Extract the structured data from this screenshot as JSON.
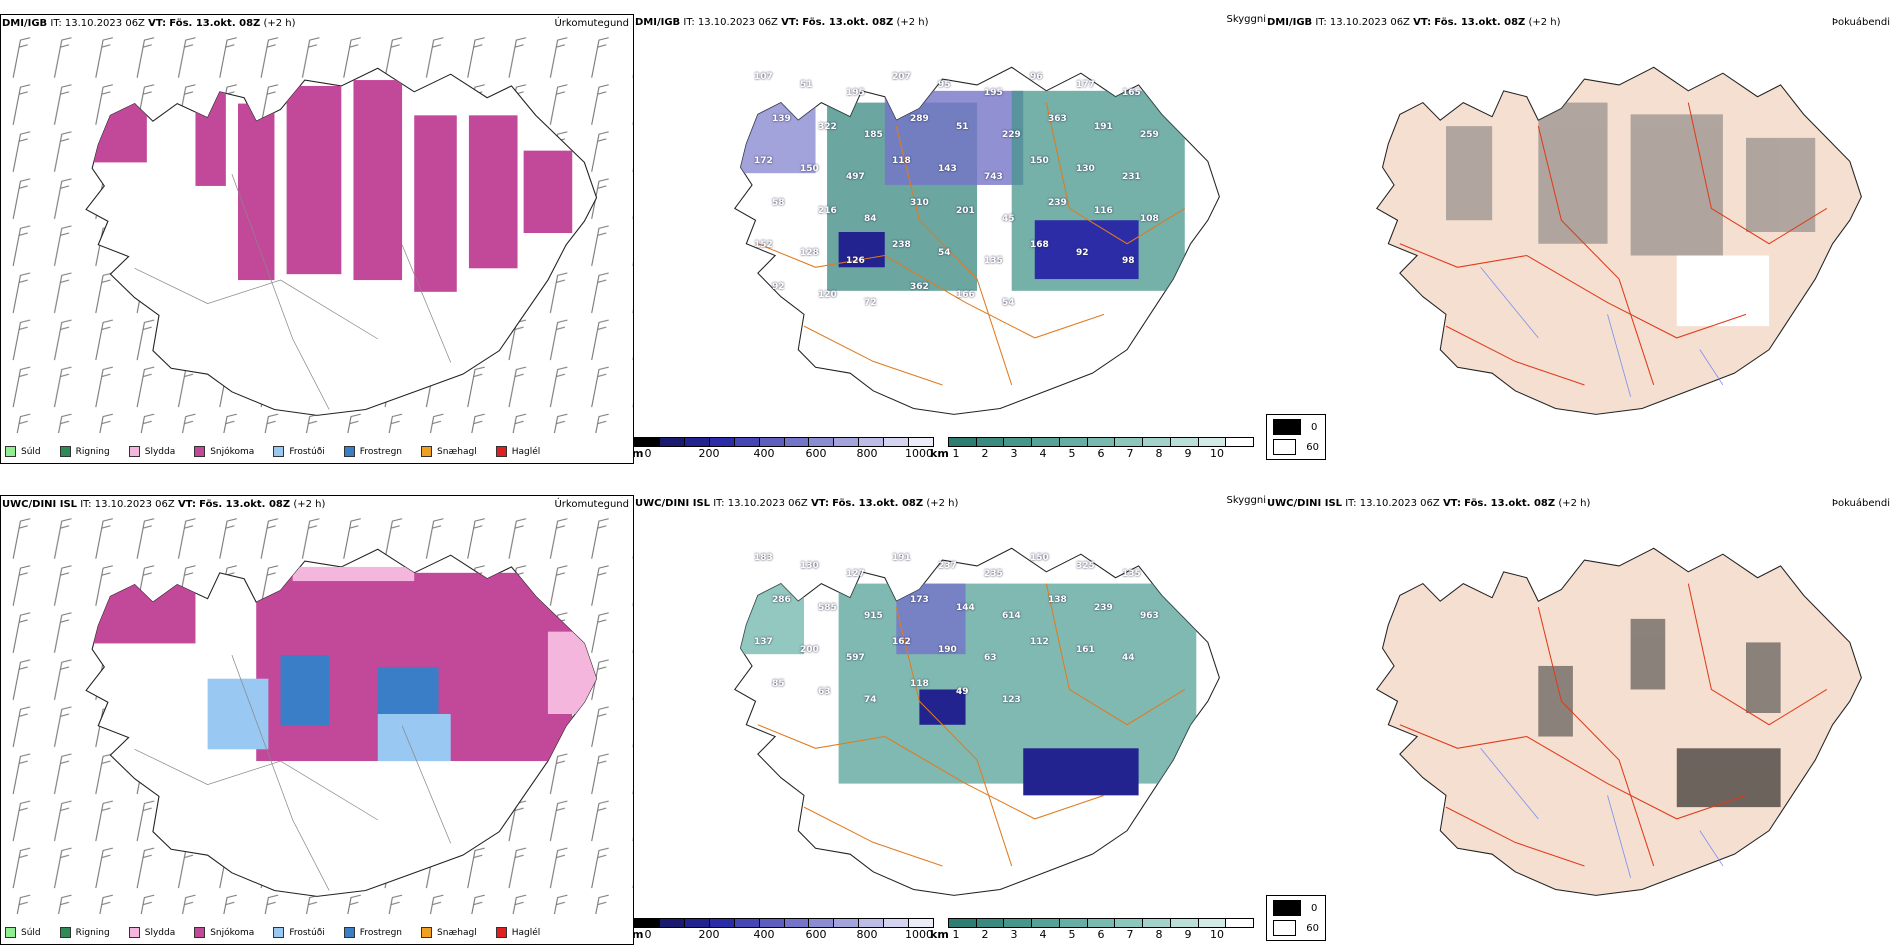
{
  "rows": [
    {
      "model": "DMI/IGB",
      "it_label": "IT:",
      "it_value": "13.10.2023 06Z",
      "vt_label": "VT:",
      "vt_value": "Fös. 13.okt. 08Z",
      "lead": "(+2 h)"
    },
    {
      "model": "UWC/DINI ISL",
      "it_label": "IT:",
      "it_value": "13.10.2023 06Z",
      "vt_label": "VT:",
      "vt_value": "Fös. 13.okt. 08Z",
      "lead": "(+2 h)"
    }
  ],
  "panel_titles": {
    "precip": "Úrkomutegund",
    "visibility": "Skyggni",
    "fog": "Þokuábendi"
  },
  "precip_legend": [
    {
      "label": "Súld",
      "color": "#90ee90"
    },
    {
      "label": "Rigning",
      "color": "#2e8b57"
    },
    {
      "label": "Slydda",
      "color": "#f4b6dc"
    },
    {
      "label": "Snjókoma",
      "color": "#c2489a"
    },
    {
      "label": "Frostúði",
      "color": "#99c8f2"
    },
    {
      "label": "Frostregn",
      "color": "#3a7ec8"
    },
    {
      "label": "Snæhagl",
      "color": "#f0a020"
    },
    {
      "label": "Haglél",
      "color": "#e02020"
    }
  ],
  "cloudbase_bar": {
    "unit": "m",
    "ticks": [
      "0",
      "200",
      "400",
      "600",
      "800",
      "1000"
    ],
    "colors": [
      "#000000",
      "#1a1a6e",
      "#232390",
      "#2c2ca6",
      "#4646b4",
      "#5e5ebe",
      "#7474c8",
      "#8c8cd2",
      "#a4a4dc",
      "#bcbce6",
      "#d4d4f0",
      "#ececf8"
    ]
  },
  "visibility_bar": {
    "unit": "km",
    "ticks": [
      "1",
      "2",
      "3",
      "4",
      "5",
      "6",
      "7",
      "8",
      "9",
      "10"
    ],
    "colors": [
      "#2e7d73",
      "#3a8a80",
      "#47968c",
      "#56a298",
      "#66aea4",
      "#78bab0",
      "#8cc6bd",
      "#a2d2ca",
      "#badfd8",
      "#d2ebe6",
      "#ffffff"
    ]
  },
  "fog_legend": [
    {
      "label": "0",
      "color": "#000000"
    },
    {
      "label": "60",
      "color": "#ffffff"
    }
  ],
  "cloud_base_labels": {
    "top": [
      "107",
      "51",
      "195",
      "207",
      "95",
      "195",
      "96",
      "177",
      "165",
      "139",
      "322",
      "185",
      "289",
      "51",
      "229",
      "363",
      "191",
      "259",
      "172",
      "150",
      "497",
      "118",
      "143",
      "743",
      "150",
      "130",
      "231",
      "58",
      "216",
      "84",
      "310",
      "201",
      "45",
      "239",
      "116",
      "108",
      "152",
      "128",
      "126",
      "238",
      "54",
      "135",
      "168",
      "92",
      "98",
      "92",
      "120",
      "72",
      "362",
      "166",
      "54"
    ],
    "bottom": [
      "183",
      "130",
      "127",
      "191",
      "237",
      "235",
      "150",
      "325",
      "135",
      "286",
      "585",
      "915",
      "173",
      "144",
      "614",
      "138",
      "239",
      "963",
      "137",
      "200",
      "597",
      "162",
      "190",
      "63",
      "112",
      "161",
      "44",
      "85",
      "63",
      "74",
      "118",
      "49",
      "123"
    ]
  }
}
